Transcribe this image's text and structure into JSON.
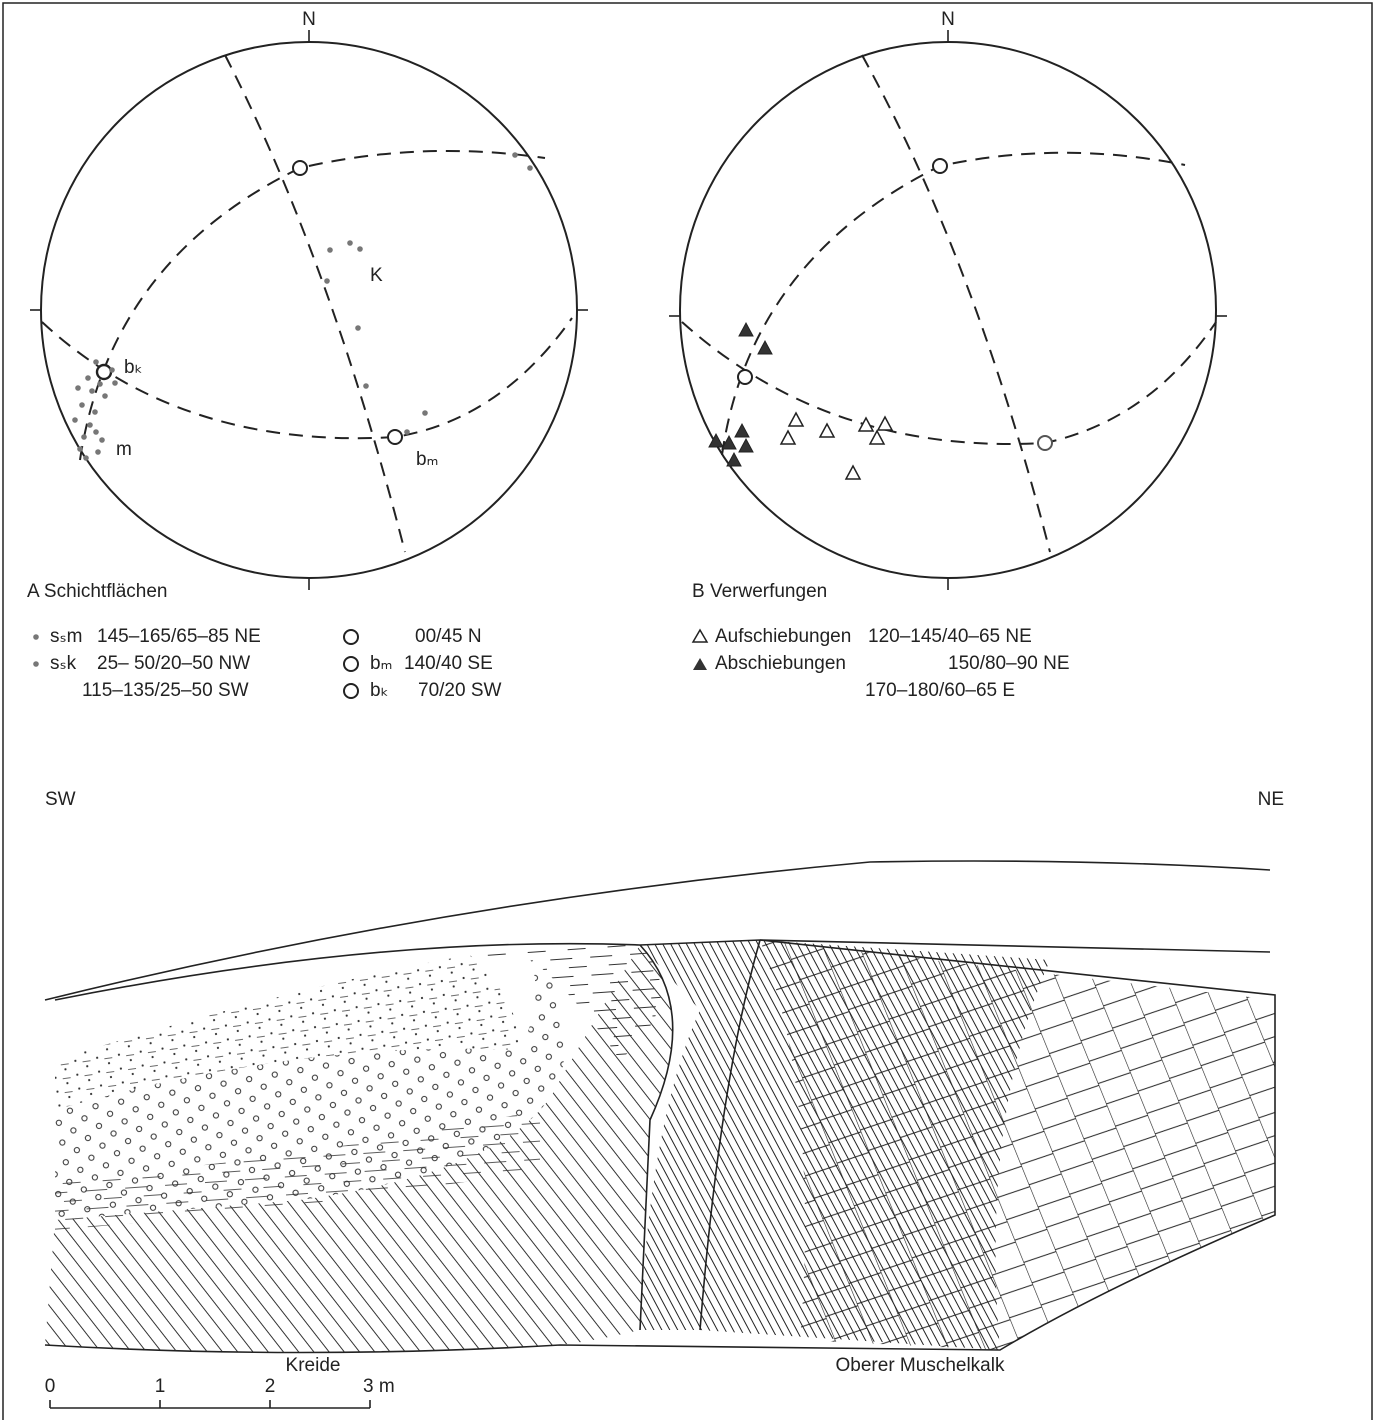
{
  "diagram_a": {
    "north": "N",
    "labels": {
      "k": "K",
      "bk": "bₖ",
      "m": "m",
      "bm": "bₘ"
    },
    "caption": "A Schichtflächen",
    "legend_left": [
      [
        "sₛm",
        "145–165/65–85 NE"
      ],
      [
        "sₛk",
        "25– 50/20–50 NW"
      ],
      [
        "115–135/25–50 SW"
      ]
    ],
    "legend_right": [
      [
        "00/45 N"
      ],
      [
        "bₘ",
        "140/40 SE"
      ],
      [
        "bₖ",
        "70/20 SW"
      ]
    ]
  },
  "diagram_b": {
    "north": "N",
    "caption": "B Verwerfungen",
    "legend": [
      [
        "Aufschiebungen",
        "120–145/40–65 NE"
      ],
      [
        "Abschiebungen",
        "150/80–90 NE"
      ],
      [
        "170–180/60–65 E"
      ]
    ]
  },
  "section": {
    "left": "SW",
    "right": "NE",
    "unit_left": "Kreide",
    "unit_right": "Oberer Muschelkalk",
    "scale": [
      "0",
      "1",
      "2",
      "3 m"
    ]
  }
}
